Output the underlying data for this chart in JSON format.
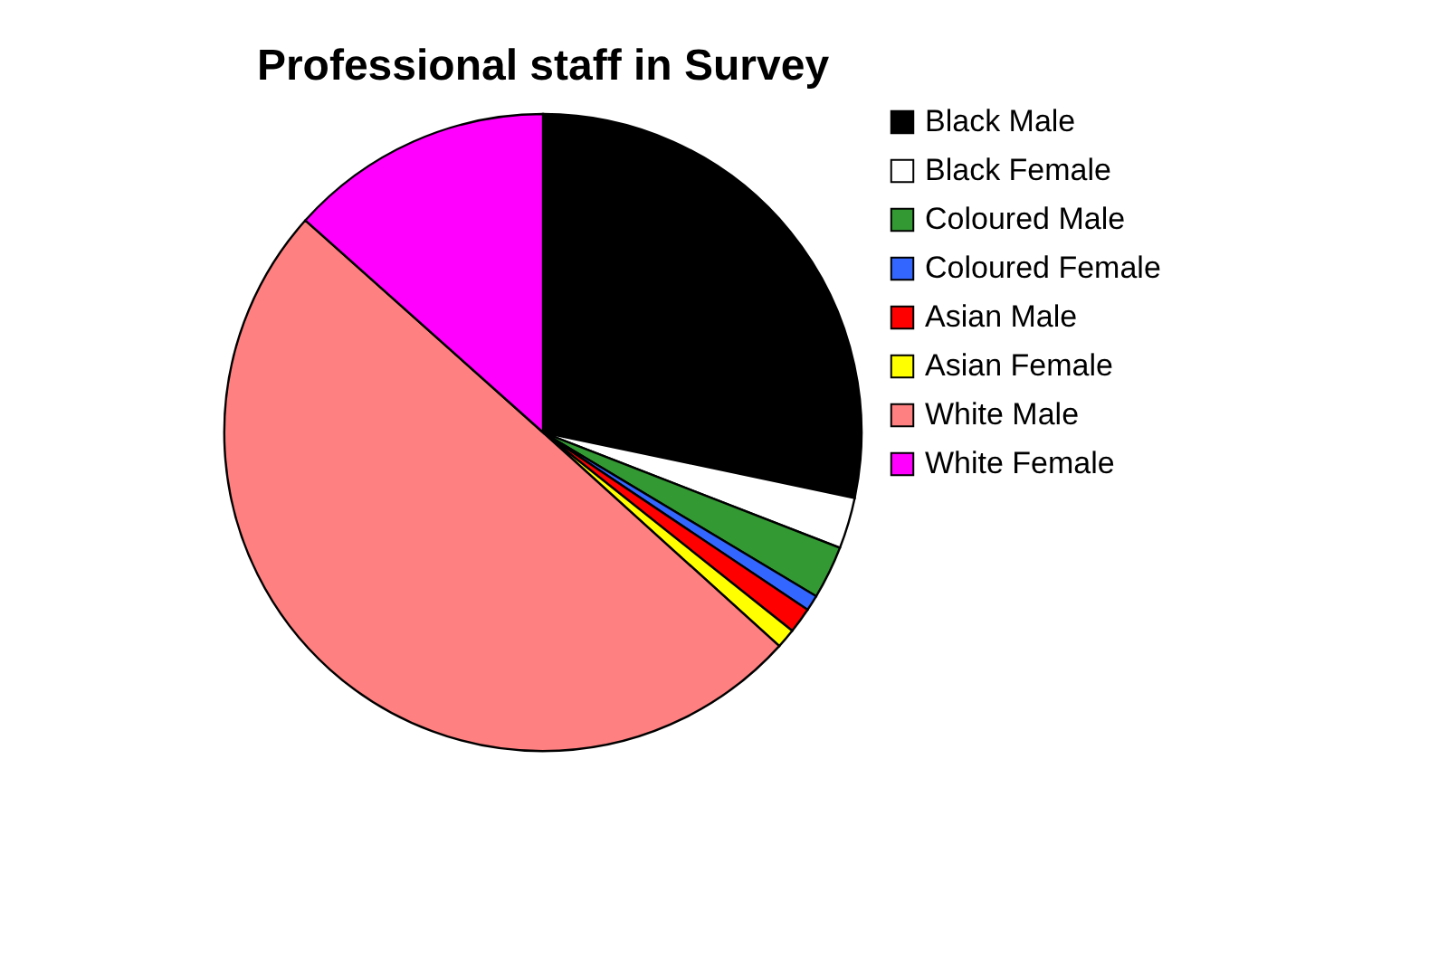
{
  "chart_data": {
    "type": "pie",
    "title": "Professional staff in Survey",
    "categories": [
      "Black Male",
      "Black Female",
      "Coloured Male",
      "Coloured Female",
      "Asian Male",
      "Asian Female",
      "White Male",
      "White Female"
    ],
    "values": [
      28.3,
      2.6,
      2.7,
      0.8,
      1.3,
      1.0,
      49.9,
      13.4
    ],
    "colors": [
      "#000000",
      "#ffffff",
      "#339933",
      "#3366ff",
      "#ff0000",
      "#ffff00",
      "#ff8080",
      "#ff00ff"
    ],
    "legend": "right"
  }
}
